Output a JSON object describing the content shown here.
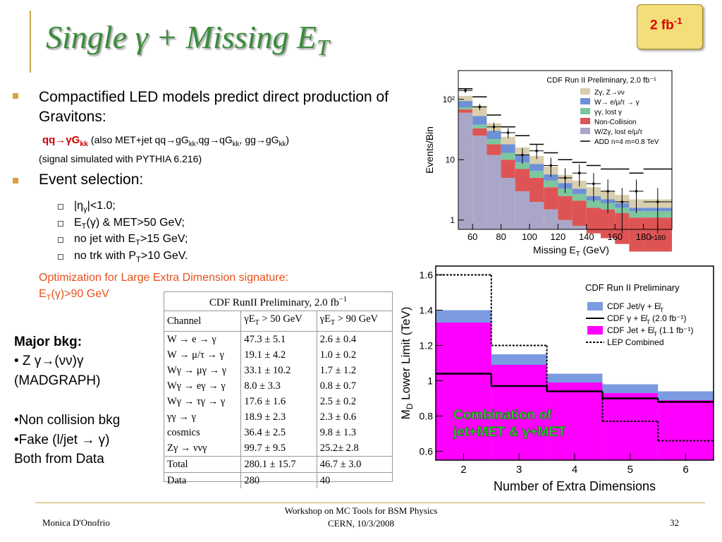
{
  "slide": {
    "badge": [
      "2 fb",
      {
        "sup": "-1"
      }
    ],
    "title": [
      "Single γ + Missing E",
      {
        "sub": "T"
      }
    ],
    "bullets": [
      {
        "text": "Compactified LED models predict direct production of Gravitons:",
        "signal": [
          "qq→γG",
          {
            "sub": "kk"
          }
        ],
        "also": [
          "(also MET+jet qq→gG",
          {
            "sub": "kk"
          },
          ",qg→qG",
          {
            "sub": "kk"
          },
          ", gg→gG",
          {
            "sub": "kk"
          },
          ")"
        ],
        "note": "(signal simulated with PYTHIA 6.216)"
      },
      {
        "text": "Event selection:",
        "items": [
          [
            "|η",
            {
              "sub": "γ"
            },
            "|<1.0;"
          ],
          [
            "E",
            {
              "sub": "T"
            },
            "(γ) & MET>50 GeV;"
          ],
          [
            "no jet with E",
            {
              "sub": "T"
            },
            ">15 GeV;"
          ],
          [
            "no trk with P",
            {
              "sub": "T"
            },
            ">10 GeV."
          ]
        ]
      }
    ],
    "optimization": "Optimization for Large Extra Dimension signature:",
    "optimization_cut": [
      "E",
      {
        "sub": "T"
      },
      "(γ)>90 GeV"
    ],
    "major_bkg": {
      "heading": "Major bkg:",
      "lines": [
        "• Z γ→(νν)γ",
        "(MADGRAPH)",
        "•Non collision bkg",
        "•Fake (l/jet → γ)",
        "Both from Data"
      ]
    },
    "table": {
      "title": [
        "CDF RunII Preliminary, 2.0 fb",
        {
          "sup": "−1"
        }
      ],
      "header": [
        "Channel",
        [
          "γE",
          {
            "sub": "T"
          },
          " > 50 GeV"
        ],
        [
          "γE",
          {
            "sub": "T"
          },
          " > 90 GeV"
        ]
      ],
      "rows": [
        [
          "W → e → γ",
          "47.3 ± 5.1",
          "2.6 ± 0.4"
        ],
        [
          "W → μ/τ → γ",
          "19.1 ± 4.2",
          "1.0 ± 0.2"
        ],
        [
          "Wγ → μγ → γ",
          "33.1 ± 10.2",
          "1.7 ± 1.2"
        ],
        [
          "Wγ → eγ → γ",
          "8.0 ± 3.3",
          "0.8 ± 0.7"
        ],
        [
          "Wγ → τγ → γ",
          "17.6 ± 1.6",
          "2.5 ± 0.2"
        ],
        [
          "γγ → γ",
          "18.9 ± 2.3",
          "2.3 ± 0.6"
        ],
        [
          "cosmics",
          "36.4 ± 2.5",
          "9.8 ± 1.3"
        ],
        [
          "Zγ → ννγ",
          "99.7 ± 9.5",
          "25.2± 2.8"
        ],
        [
          "Total",
          "280.1 ± 15.7",
          "46.7 ± 3.0"
        ],
        [
          "Data",
          "280",
          "40"
        ]
      ]
    },
    "footer": {
      "author": "Monica D'Onofrio",
      "event": [
        "Workshop on MC Tools for BSM Physics",
        "CERN, 10/3/2008"
      ],
      "page": "32"
    }
  },
  "chart_data": [
    {
      "type": "histogram",
      "title": "CDF Run II Preliminary, 2.0 fb⁻¹",
      "xlabel": [
        "Missing E",
        {
          "sub": "T"
        },
        " (GeV)"
      ],
      "ylabel": "Events/Bin",
      "log_scale": true,
      "bins": [
        50,
        60,
        70,
        80,
        90,
        100,
        110,
        120,
        130,
        140,
        150,
        160,
        170,
        180,
        200
      ],
      "xlim": [
        50,
        200
      ],
      "xticks": [
        60,
        80,
        100,
        120,
        140,
        160,
        180,
        {
          "value": 190,
          "label": ">180"
        }
      ],
      "ylim": [
        0.7,
        300
      ],
      "yticks": [
        1,
        10,
        {
          "value": 100,
          "label": "10²"
        }
      ],
      "series": [
        {
          "name": "Zγ, Z→νν",
          "color": "#d9cfae",
          "values": [
            20,
            25,
            10,
            6,
            4,
            3,
            2,
            1.5,
            1.2,
            1,
            0.9,
            0.7,
            0.6,
            0.6
          ]
        },
        {
          "name": "W→ e/μ/τ → γ",
          "color": "#6f8fd6",
          "values": [
            20,
            15,
            8,
            5,
            3,
            2,
            1.2,
            0.8,
            0.6,
            0.4,
            0.3,
            0.3,
            0.2,
            0.2
          ]
        },
        {
          "name": "γγ, lost γ",
          "color": "#7cc79e",
          "values": [
            6,
            5,
            4,
            3,
            2,
            1.5,
            1,
            0.8,
            0.6,
            0.5,
            0.4,
            0.3,
            0.3,
            0.3
          ]
        },
        {
          "name": "Non-Collision",
          "color": "#de5454",
          "values": [
            8,
            8,
            6,
            5,
            4,
            3,
            2,
            1.5,
            1.3,
            1,
            1,
            0.9,
            0.8,
            0.8
          ]
        },
        {
          "name": "W/Zγ, lost e/μ/τ",
          "color": "#aaa6c8",
          "values": [
            60,
            25,
            12,
            5,
            3,
            2,
            1.5,
            1,
            0.8,
            0.6,
            0.5,
            0.4,
            0.3,
            0.3
          ]
        }
      ],
      "signal": {
        "name": "ADD n=4 m=0.8 TeV",
        "color": "#000000",
        "values": [
          150,
          110,
          55,
          35,
          25,
          18,
          13,
          10,
          9,
          8,
          7,
          7,
          6,
          7
        ]
      },
      "data": {
        "color": "#000000",
        "values": [
          140,
          75,
          35,
          28,
          12,
          14,
          8,
          5,
          6,
          4,
          3,
          2,
          3,
          2
        ],
        "errors": [
          12,
          9,
          6,
          5.3,
          3.5,
          3.7,
          2.8,
          2.2,
          2.4,
          2,
          1.7,
          1.4,
          1.7,
          1.4
        ]
      }
    },
    {
      "type": "step",
      "title": "CDF Run II Preliminary",
      "xlabel": "Number of Extra Dimensions",
      "ylabel": [
        "M",
        {
          "sub": "D"
        },
        " Lower Limit (TeV)"
      ],
      "annotation": [
        "Combination of",
        "jet+MET & γ+MET"
      ],
      "x": [
        2,
        3,
        4,
        5,
        6
      ],
      "xlim": [
        1.5,
        6.5
      ],
      "xticks": [
        2,
        3,
        4,
        5,
        6
      ],
      "ylim": [
        0.55,
        1.65
      ],
      "yticks": [
        0.6,
        0.8,
        1,
        1.2,
        1.4,
        1.6
      ],
      "series": [
        {
          "name": [
            "CDF  Jet/γ + E̸",
            {
              "sub": "T"
            }
          ],
          "color": "#7b9be0",
          "style": "fill",
          "values": [
            1.4,
            1.15,
            1.04,
            0.98,
            0.94
          ]
        },
        {
          "name": [
            "CDF  γ + E̸",
            {
              "sub": "T"
            },
            "  (2.0 fb⁻¹)"
          ],
          "color": "#000000",
          "style": "line",
          "values": [
            1.04,
            0.97,
            0.94,
            0.9,
            0.88
          ]
        },
        {
          "name": [
            "CDF Jet + E̸",
            {
              "sub": "T"
            },
            " (1.1 fb⁻¹)"
          ],
          "color": "#ff00ff",
          "style": "fill",
          "values": [
            1.33,
            1.09,
            0.99,
            0.93,
            0.89
          ]
        },
        {
          "name": "LEP Combined",
          "color": "#000000",
          "style": "dotted",
          "values": [
            1.6,
            1.2,
            0.94,
            0.77,
            0.66
          ]
        }
      ]
    }
  ]
}
